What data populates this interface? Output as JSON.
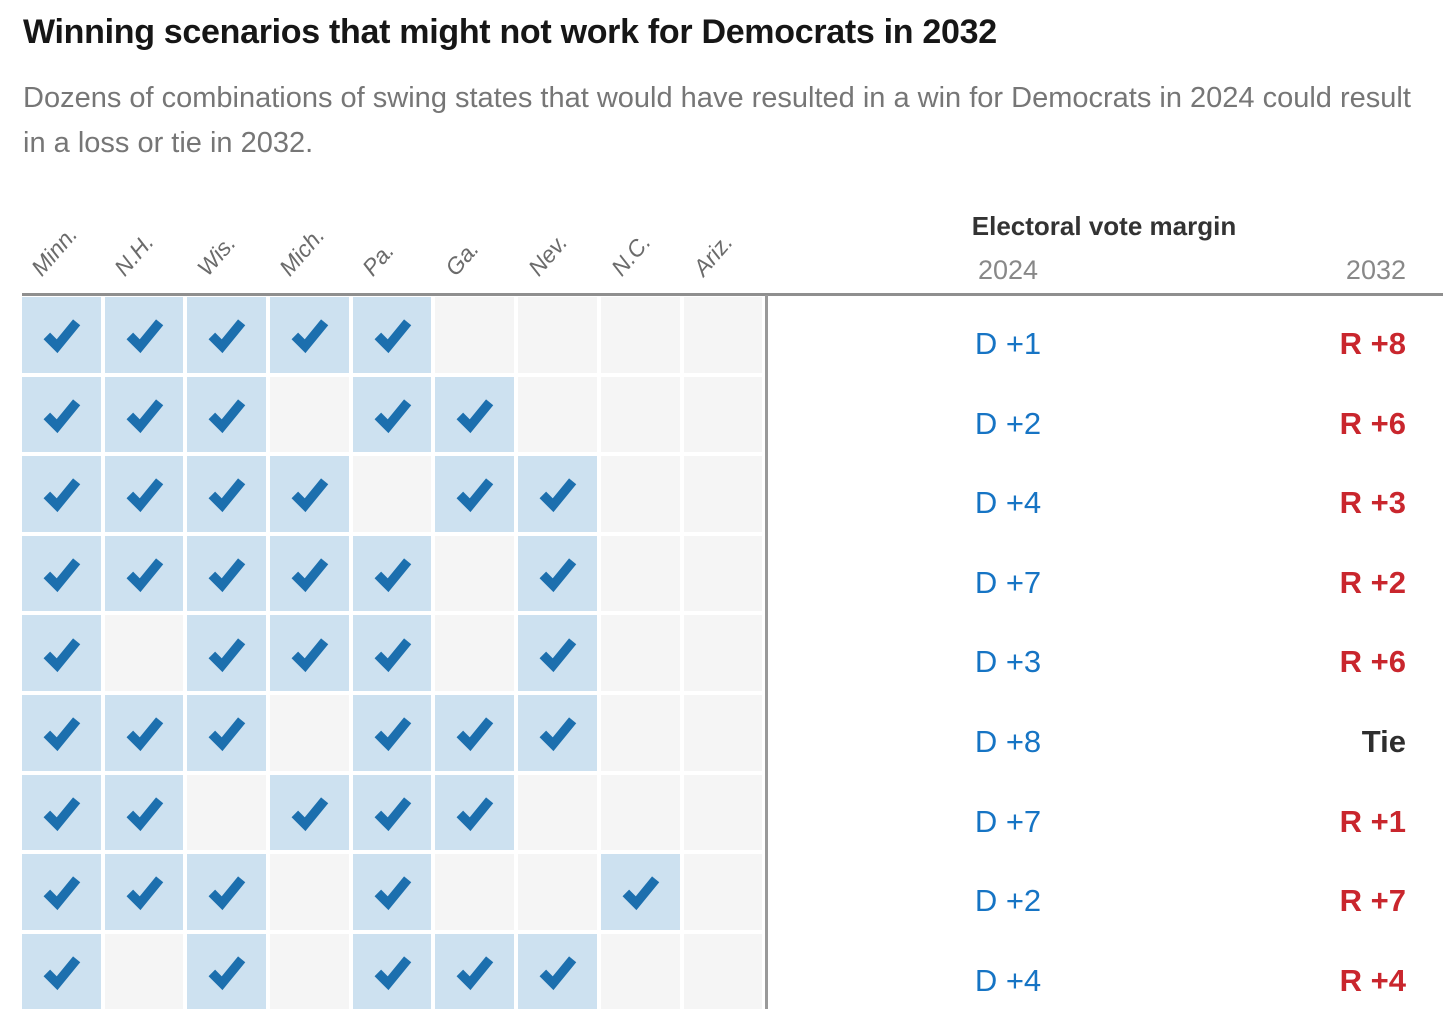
{
  "header": {
    "title": "Winning scenarios that might not work for Democrats in 2032",
    "subtitle": "Dozens of combinations of swing states that would have resulted in a win for Democrats in 2024 could result in a loss or tie in 2032."
  },
  "chart_data": {
    "type": "table",
    "title": "Winning scenarios that might not work for Democrats in 2032",
    "subtitle": "Dozens of combinations of swing states that would have resulted in a win for Democrats in 2024 could result in a loss or tie in 2032.",
    "states": [
      "Minn.",
      "N.H.",
      "Wis.",
      "Mich.",
      "Pa.",
      "Ga.",
      "Nev.",
      "N.C.",
      "Ariz."
    ],
    "margin_header": "Electoral vote margin",
    "year_columns": [
      "2024",
      "2032"
    ],
    "rows": [
      {
        "checks": [
          1,
          1,
          1,
          1,
          1,
          0,
          0,
          0,
          0
        ],
        "m2024": "D +1",
        "m2032": "R +8"
      },
      {
        "checks": [
          1,
          1,
          1,
          0,
          1,
          1,
          0,
          0,
          0
        ],
        "m2024": "D +2",
        "m2032": "R +6"
      },
      {
        "checks": [
          1,
          1,
          1,
          1,
          0,
          1,
          1,
          0,
          0
        ],
        "m2024": "D +4",
        "m2032": "R +3"
      },
      {
        "checks": [
          1,
          1,
          1,
          1,
          1,
          0,
          1,
          0,
          0
        ],
        "m2024": "D +7",
        "m2032": "R +2"
      },
      {
        "checks": [
          1,
          0,
          1,
          1,
          1,
          0,
          1,
          0,
          0
        ],
        "m2024": "D +3",
        "m2032": "R +6"
      },
      {
        "checks": [
          1,
          1,
          1,
          0,
          1,
          1,
          1,
          0,
          0
        ],
        "m2024": "D +8",
        "m2032": "Tie"
      },
      {
        "checks": [
          1,
          1,
          0,
          1,
          1,
          1,
          0,
          0,
          0
        ],
        "m2024": "D +7",
        "m2032": "R +1"
      },
      {
        "checks": [
          1,
          1,
          1,
          0,
          1,
          0,
          0,
          1,
          0
        ],
        "m2024": "D +2",
        "m2032": "R +7"
      },
      {
        "checks": [
          1,
          0,
          1,
          0,
          1,
          1,
          1,
          0,
          0
        ],
        "m2024": "D +4",
        "m2032": "R +4"
      }
    ],
    "colors": {
      "check": "#1c6fae",
      "cell_checked_bg": "#cde1f0",
      "cell_empty_bg": "#f5f5f5",
      "dem_blue": "#1674c4",
      "rep_red": "#c9262d",
      "tie_text": "#2e2e2e",
      "rule_gray": "#8f8f8f"
    },
    "layout": {
      "grid_columns": 9,
      "grid_rows": 9,
      "legend_position": "right",
      "grid_lines": false
    }
  }
}
